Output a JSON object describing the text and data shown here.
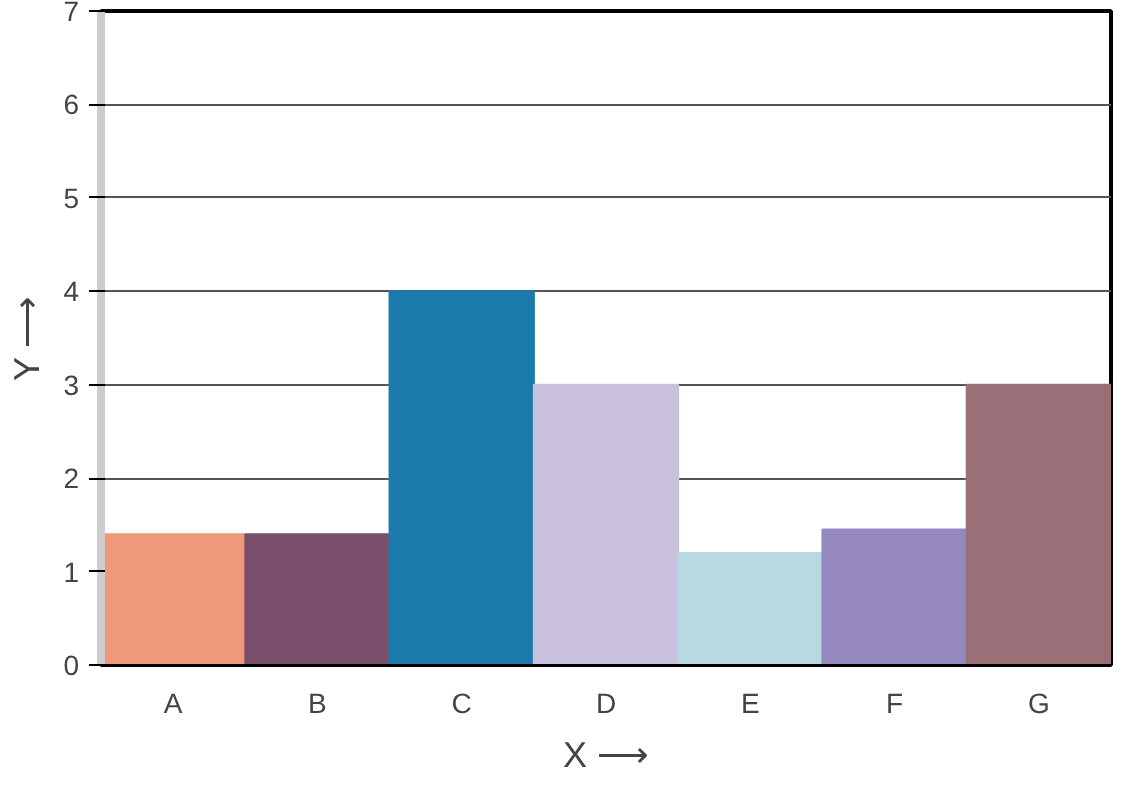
{
  "chart_data": {
    "type": "bar",
    "xlabel": "X ⟶",
    "ylabel": "Y ⟶",
    "categories": [
      "A",
      "B",
      "C",
      "D",
      "E",
      "F",
      "G"
    ],
    "values": [
      1.4,
      1.4,
      4,
      3,
      1.2,
      1.45,
      3
    ],
    "colors": [
      "#f0987a",
      "#7a4f6b",
      "#1a7aab",
      "#c8c0dd",
      "#b8d8e2",
      "#9588c0",
      "#9a6f78"
    ],
    "ylim": [
      0,
      7
    ],
    "yticks": [
      0,
      1,
      2,
      3,
      4,
      5,
      6,
      7
    ],
    "grid": "y"
  }
}
